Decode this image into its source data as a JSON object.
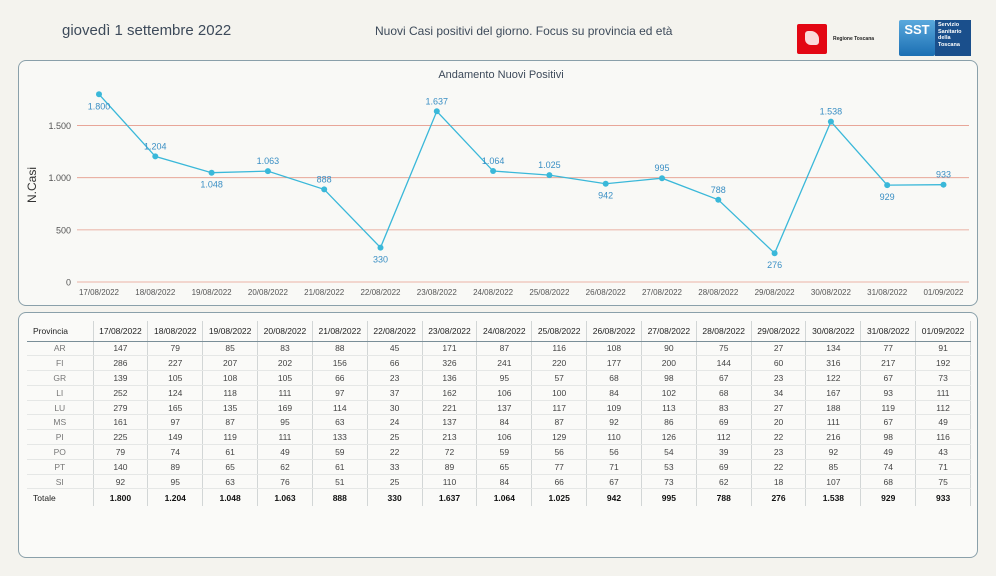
{
  "header": {
    "date": "giovedì 1 settembre 2022",
    "subtitle": "Nuovi Casi positivi del giorno. Focus su provincia ed età",
    "logo_rt_text": "Regione Toscana",
    "logo_sst_mark": "SST",
    "logo_sst_text": [
      "Servizio",
      "Sanitario",
      "della",
      "Toscana"
    ]
  },
  "chart_data": {
    "type": "line",
    "title": "Andamento Nuovi Positivi",
    "ylabel": "N.Casi",
    "xlabel": "",
    "ylim": [
      0,
      1800
    ],
    "yticks": [
      0,
      500,
      1000,
      1500
    ],
    "ytick_labels": [
      "0",
      "500",
      "1.000",
      "1.500"
    ],
    "categories": [
      "17/08/2022",
      "18/08/2022",
      "19/08/2022",
      "20/08/2022",
      "21/08/2022",
      "22/08/2022",
      "23/08/2022",
      "24/08/2022",
      "25/08/2022",
      "26/08/2022",
      "27/08/2022",
      "28/08/2022",
      "29/08/2022",
      "30/08/2022",
      "31/08/2022",
      "01/09/2022"
    ],
    "values": [
      1800,
      1204,
      1048,
      1063,
      888,
      330,
      1637,
      1064,
      1025,
      942,
      995,
      788,
      276,
      1538,
      929,
      933
    ],
    "value_labels": [
      "1.800",
      "1.204",
      "1.048",
      "1.063",
      "888",
      "330",
      "1.637",
      "1.064",
      "1.025",
      "942",
      "995",
      "788",
      "276",
      "1.538",
      "929",
      "933"
    ],
    "label_pos": [
      "below",
      "above",
      "below",
      "above",
      "above",
      "below",
      "above",
      "above",
      "above",
      "below",
      "above",
      "above",
      "below",
      "above",
      "below",
      "above"
    ],
    "line_color": "#3ab8d9",
    "grid_color": "#e59a8a",
    "grid": true
  },
  "table": {
    "headers": [
      "Provincia",
      "17/08/2022",
      "18/08/2022",
      "19/08/2022",
      "20/08/2022",
      "21/08/2022",
      "22/08/2022",
      "23/08/2022",
      "24/08/2022",
      "25/08/2022",
      "26/08/2022",
      "27/08/2022",
      "28/08/2022",
      "29/08/2022",
      "30/08/2022",
      "31/08/2022",
      "01/09/2022"
    ],
    "rows": [
      [
        "AR",
        "147",
        "79",
        "85",
        "83",
        "88",
        "45",
        "171",
        "87",
        "116",
        "108",
        "90",
        "75",
        "27",
        "134",
        "77",
        "91"
      ],
      [
        "FI",
        "286",
        "227",
        "207",
        "202",
        "156",
        "66",
        "326",
        "241",
        "220",
        "177",
        "200",
        "144",
        "60",
        "316",
        "217",
        "192"
      ],
      [
        "GR",
        "139",
        "105",
        "108",
        "105",
        "66",
        "23",
        "136",
        "95",
        "57",
        "68",
        "98",
        "67",
        "23",
        "122",
        "67",
        "73"
      ],
      [
        "LI",
        "252",
        "124",
        "118",
        "111",
        "97",
        "37",
        "162",
        "106",
        "100",
        "84",
        "102",
        "68",
        "34",
        "167",
        "93",
        "111"
      ],
      [
        "LU",
        "279",
        "165",
        "135",
        "169",
        "114",
        "30",
        "221",
        "137",
        "117",
        "109",
        "113",
        "83",
        "27",
        "188",
        "119",
        "112"
      ],
      [
        "MS",
        "161",
        "97",
        "87",
        "95",
        "63",
        "24",
        "137",
        "84",
        "87",
        "92",
        "86",
        "69",
        "20",
        "111",
        "67",
        "49"
      ],
      [
        "PI",
        "225",
        "149",
        "119",
        "111",
        "133",
        "25",
        "213",
        "106",
        "129",
        "110",
        "126",
        "112",
        "22",
        "216",
        "98",
        "116"
      ],
      [
        "PO",
        "79",
        "74",
        "61",
        "49",
        "59",
        "22",
        "72",
        "59",
        "56",
        "56",
        "54",
        "39",
        "23",
        "92",
        "49",
        "43"
      ],
      [
        "PT",
        "140",
        "89",
        "65",
        "62",
        "61",
        "33",
        "89",
        "65",
        "77",
        "71",
        "53",
        "69",
        "22",
        "85",
        "74",
        "71"
      ],
      [
        "SI",
        "92",
        "95",
        "63",
        "76",
        "51",
        "25",
        "110",
        "84",
        "66",
        "67",
        "73",
        "62",
        "18",
        "107",
        "68",
        "75"
      ]
    ],
    "total": [
      "Totale",
      "1.800",
      "1.204",
      "1.048",
      "1.063",
      "888",
      "330",
      "1.637",
      "1.064",
      "1.025",
      "942",
      "995",
      "788",
      "276",
      "1.538",
      "929",
      "933"
    ]
  }
}
